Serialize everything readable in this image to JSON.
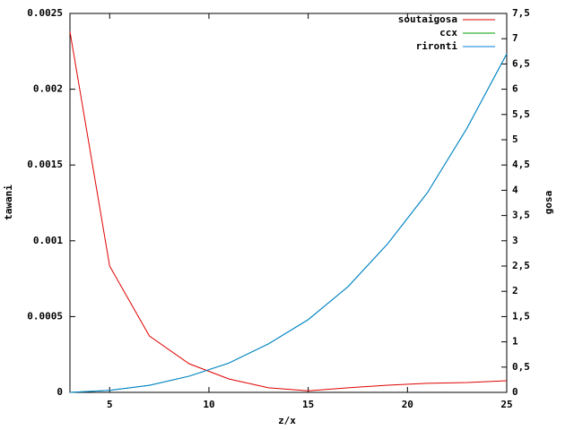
{
  "chart_data": {
    "type": "line",
    "x_label": "z/x",
    "y_label": "tawani",
    "y2_label": "gosa",
    "x": [
      3,
      5,
      7,
      9,
      11,
      13,
      15,
      17,
      19,
      21,
      23,
      25
    ],
    "series": [
      {
        "name": "soutaigosa",
        "color": "#e00000",
        "values": [
          0.00238,
          0.000833,
          0.000372,
          0.000189,
          8.87e-05,
          3e-05,
          1e-05,
          3e-05,
          4.7e-05,
          6e-05,
          6.5e-05,
          7.7e-05
        ]
      },
      {
        "name": "ccx",
        "color": "#00a000",
        "axis": "y2",
        "values": [
          0,
          0.04,
          0.14,
          0.32,
          0.58,
          0.96,
          1.44,
          2.09,
          2.94,
          3.95,
          5.23,
          6.7
        ]
      },
      {
        "name": "rironti",
        "color": "#0080e0",
        "axis": "y2",
        "values": [
          0,
          0.04,
          0.14,
          0.32,
          0.58,
          0.96,
          1.44,
          2.09,
          2.94,
          3.95,
          5.23,
          6.7
        ]
      }
    ],
    "xlim": [
      3,
      25
    ],
    "xticks": [
      5,
      10,
      15,
      20,
      25
    ],
    "ylim": [
      0,
      0.0025
    ],
    "yticks": [
      0,
      0.0005,
      0.001,
      0.0015,
      0.002,
      0.0025
    ],
    "y2lim": [
      0,
      7.5
    ],
    "y2ticks": [
      0,
      {
        "value": 0.5,
        "label": "0,5"
      },
      1,
      {
        "value": 1.5,
        "label": "1,5"
      },
      2,
      {
        "value": 2.5,
        "label": "2,5"
      },
      3,
      {
        "value": 3.5,
        "label": "3,5"
      },
      4,
      {
        "value": 4.5,
        "label": "4,5"
      },
      5,
      {
        "value": 5.5,
        "label": "5,5"
      },
      6,
      {
        "value": 6.5,
        "label": "6,5"
      },
      7,
      {
        "value": 7.5,
        "label": "7,5"
      }
    ],
    "legend": "top-right"
  }
}
